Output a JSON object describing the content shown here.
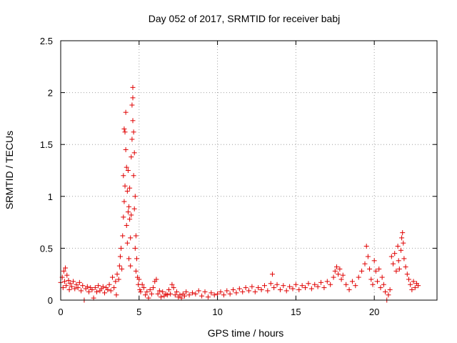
{
  "chart_data": {
    "type": "scatter",
    "title": "Day 052 of 2017, SRMTID for receiver babj",
    "xlabel": "GPS time / hours",
    "ylabel": "SRMTID / TECUs",
    "xlim": [
      0,
      24
    ],
    "ylim": [
      0,
      2.5
    ],
    "grid": true,
    "marker": "+",
    "marker_color": "#e00000",
    "x_ticks": [
      0,
      5,
      10,
      15,
      20
    ],
    "y_ticks": [
      0,
      0.5,
      1,
      1.5,
      2,
      2.5
    ],
    "x_tick_labels": [
      "0",
      "5",
      "10",
      "15",
      "20"
    ],
    "y_tick_labels": [
      "0",
      "0.5",
      "1",
      "1.5",
      "2",
      "2.5"
    ],
    "series": [
      {
        "name": "SRMTID",
        "points": [
          [
            0.0,
            0.17
          ],
          [
            0.1,
            0.22
          ],
          [
            0.15,
            0.12
          ],
          [
            0.2,
            0.28
          ],
          [
            0.25,
            0.18
          ],
          [
            0.3,
            0.31
          ],
          [
            0.35,
            0.14
          ],
          [
            0.4,
            0.24
          ],
          [
            0.5,
            0.19
          ],
          [
            0.55,
            0.1
          ],
          [
            0.6,
            0.16
          ],
          [
            0.7,
            0.13
          ],
          [
            0.8,
            0.18
          ],
          [
            0.9,
            0.11
          ],
          [
            1.0,
            0.15
          ],
          [
            1.1,
            0.12
          ],
          [
            1.2,
            0.17
          ],
          [
            1.3,
            0.09
          ],
          [
            1.4,
            0.14
          ],
          [
            1.5,
            0.0
          ],
          [
            1.6,
            0.11
          ],
          [
            1.7,
            0.13
          ],
          [
            1.8,
            0.08
          ],
          [
            1.9,
            0.12
          ],
          [
            2.0,
            0.1
          ],
          [
            2.1,
            0.02
          ],
          [
            2.2,
            0.12
          ],
          [
            2.3,
            0.08
          ],
          [
            2.4,
            0.14
          ],
          [
            2.5,
            0.09
          ],
          [
            2.6,
            0.11
          ],
          [
            2.7,
            0.13
          ],
          [
            2.8,
            0.07
          ],
          [
            2.9,
            0.12
          ],
          [
            3.0,
            0.1
          ],
          [
            3.1,
            0.15
          ],
          [
            3.2,
            0.09
          ],
          [
            3.3,
            0.22
          ],
          [
            3.4,
            0.12
          ],
          [
            3.5,
            0.18
          ],
          [
            3.55,
            0.05
          ],
          [
            3.6,
            0.25
          ],
          [
            3.7,
            0.2
          ],
          [
            3.75,
            0.33
          ],
          [
            3.8,
            0.42
          ],
          [
            3.85,
            0.5
          ],
          [
            3.9,
            0.3
          ],
          [
            3.95,
            0.62
          ],
          [
            4.0,
            0.8
          ],
          [
            4.0,
            1.2
          ],
          [
            4.05,
            1.65
          ],
          [
            4.05,
            0.95
          ],
          [
            4.1,
            1.1
          ],
          [
            4.1,
            1.62
          ],
          [
            4.15,
            1.45
          ],
          [
            4.15,
            1.81
          ],
          [
            4.2,
            1.28
          ],
          [
            4.2,
            0.72
          ],
          [
            4.25,
            1.05
          ],
          [
            4.25,
            0.55
          ],
          [
            4.3,
            0.85
          ],
          [
            4.3,
            1.25
          ],
          [
            4.35,
            0.4
          ],
          [
            4.35,
            0.9
          ],
          [
            4.4,
            0.78
          ],
          [
            4.4,
            1.08
          ],
          [
            4.45,
            0.6
          ],
          [
            4.45,
            0.33
          ],
          [
            4.5,
            1.38
          ],
          [
            4.5,
            0.82
          ],
          [
            4.55,
            1.55
          ],
          [
            4.55,
            1.88
          ],
          [
            4.6,
            1.73
          ],
          [
            4.6,
            1.95
          ],
          [
            4.6,
            2.05
          ],
          [
            4.65,
            1.62
          ],
          [
            4.65,
            1.2
          ],
          [
            4.7,
            1.42
          ],
          [
            4.7,
            0.88
          ],
          [
            4.75,
            1.0
          ],
          [
            4.75,
            0.5
          ],
          [
            4.8,
            0.62
          ],
          [
            4.8,
            0.28
          ],
          [
            4.85,
            0.4
          ],
          [
            4.9,
            0.22
          ],
          [
            4.95,
            0.15
          ],
          [
            5.0,
            0.2
          ],
          [
            5.05,
            0.1
          ],
          [
            5.1,
            0.08
          ],
          [
            5.2,
            0.15
          ],
          [
            5.3,
            0.12
          ],
          [
            5.4,
            0.05
          ],
          [
            5.5,
            0.08
          ],
          [
            5.6,
            0.02
          ],
          [
            5.7,
            0.1
          ],
          [
            5.8,
            0.06
          ],
          [
            5.9,
            0.12
          ],
          [
            6.0,
            0.18
          ],
          [
            6.1,
            0.2
          ],
          [
            6.2,
            0.06
          ],
          [
            6.3,
            0.09
          ],
          [
            6.4,
            0.03
          ],
          [
            6.5,
            0.08
          ],
          [
            6.6,
            0.04
          ],
          [
            6.7,
            0.06
          ],
          [
            6.8,
            0.05
          ],
          [
            6.9,
            0.1
          ],
          [
            7.0,
            0.06
          ],
          [
            7.1,
            0.15
          ],
          [
            7.2,
            0.12
          ],
          [
            7.3,
            0.05
          ],
          [
            7.4,
            0.08
          ],
          [
            7.5,
            0.03
          ],
          [
            7.6,
            0.05
          ],
          [
            7.7,
            0.02
          ],
          [
            7.8,
            0.06
          ],
          [
            7.9,
            0.04
          ],
          [
            8.0,
            0.08
          ],
          [
            8.2,
            0.05
          ],
          [
            8.4,
            0.07
          ],
          [
            8.6,
            0.06
          ],
          [
            8.8,
            0.09
          ],
          [
            9.0,
            0.04
          ],
          [
            9.2,
            0.08
          ],
          [
            9.4,
            0.03
          ],
          [
            9.6,
            0.07
          ],
          [
            9.8,
            0.05
          ],
          [
            10.0,
            0.06
          ],
          [
            10.2,
            0.08
          ],
          [
            10.4,
            0.05
          ],
          [
            10.6,
            0.09
          ],
          [
            10.8,
            0.06
          ],
          [
            11.0,
            0.1
          ],
          [
            11.2,
            0.07
          ],
          [
            11.4,
            0.11
          ],
          [
            11.6,
            0.08
          ],
          [
            11.8,
            0.12
          ],
          [
            12.0,
            0.09
          ],
          [
            12.2,
            0.13
          ],
          [
            12.4,
            0.08
          ],
          [
            12.6,
            0.12
          ],
          [
            12.8,
            0.1
          ],
          [
            13.0,
            0.14
          ],
          [
            13.2,
            0.09
          ],
          [
            13.4,
            0.16
          ],
          [
            13.5,
            0.25
          ],
          [
            13.6,
            0.12
          ],
          [
            13.8,
            0.15
          ],
          [
            14.0,
            0.1
          ],
          [
            14.2,
            0.14
          ],
          [
            14.4,
            0.09
          ],
          [
            14.6,
            0.13
          ],
          [
            14.8,
            0.11
          ],
          [
            15.0,
            0.15
          ],
          [
            15.2,
            0.1
          ],
          [
            15.4,
            0.14
          ],
          [
            15.6,
            0.12
          ],
          [
            15.8,
            0.16
          ],
          [
            16.0,
            0.11
          ],
          [
            16.2,
            0.15
          ],
          [
            16.4,
            0.13
          ],
          [
            16.6,
            0.17
          ],
          [
            16.8,
            0.12
          ],
          [
            17.0,
            0.18
          ],
          [
            17.2,
            0.15
          ],
          [
            17.4,
            0.22
          ],
          [
            17.5,
            0.28
          ],
          [
            17.6,
            0.32
          ],
          [
            17.7,
            0.25
          ],
          [
            17.8,
            0.3
          ],
          [
            17.9,
            0.2
          ],
          [
            18.0,
            0.24
          ],
          [
            18.2,
            0.15
          ],
          [
            18.4,
            0.1
          ],
          [
            18.6,
            0.18
          ],
          [
            18.8,
            0.14
          ],
          [
            19.0,
            0.22
          ],
          [
            19.2,
            0.28
          ],
          [
            19.4,
            0.35
          ],
          [
            19.5,
            0.52
          ],
          [
            19.6,
            0.42
          ],
          [
            19.7,
            0.3
          ],
          [
            19.8,
            0.2
          ],
          [
            19.9,
            0.15
          ],
          [
            20.0,
            0.38
          ],
          [
            20.1,
            0.28
          ],
          [
            20.2,
            0.18
          ],
          [
            20.3,
            0.3
          ],
          [
            20.4,
            0.12
          ],
          [
            20.5,
            0.22
          ],
          [
            20.6,
            0.15
          ],
          [
            20.7,
            0.08
          ],
          [
            20.8,
            0.0
          ],
          [
            20.9,
            0.05
          ],
          [
            21.0,
            0.1
          ],
          [
            21.1,
            0.42
          ],
          [
            21.2,
            0.35
          ],
          [
            21.3,
            0.45
          ],
          [
            21.4,
            0.28
          ],
          [
            21.5,
            0.52
          ],
          [
            21.55,
            0.38
          ],
          [
            21.6,
            0.3
          ],
          [
            21.7,
            0.48
          ],
          [
            21.75,
            0.6
          ],
          [
            21.8,
            0.65
          ],
          [
            21.85,
            0.55
          ],
          [
            21.9,
            0.4
          ],
          [
            22.0,
            0.32
          ],
          [
            22.1,
            0.25
          ],
          [
            22.2,
            0.2
          ],
          [
            22.3,
            0.15
          ],
          [
            22.4,
            0.1
          ],
          [
            22.5,
            0.18
          ],
          [
            22.6,
            0.12
          ],
          [
            22.7,
            0.16
          ],
          [
            22.8,
            0.14
          ]
        ]
      }
    ]
  }
}
